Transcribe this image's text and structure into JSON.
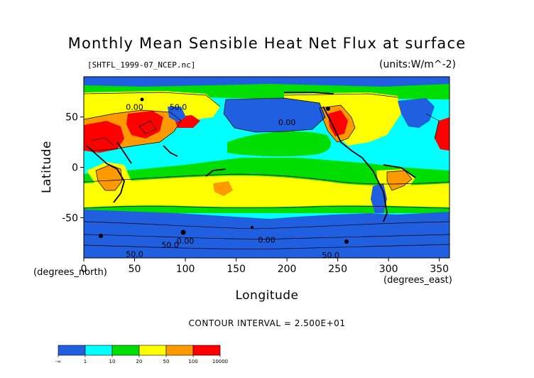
{
  "title": "Monthly Mean Sensible Heat Net Flux at surface",
  "file_label": "[SHTFL_1999-07_NCEP.nc]",
  "units_label": "(units:W/m^-2)",
  "contour_interval": "CONTOUR INTERVAL = 2.500E+01",
  "chart_data": {
    "type": "heatmap",
    "xlabel": "Longitude",
    "ylabel": "Latitude",
    "x_units": "(degrees_east)",
    "y_units": "(degrees_north)",
    "xlim": [
      0,
      360
    ],
    "ylim": [
      -90,
      90
    ],
    "x_ticks": [
      "0",
      "50",
      "100",
      "150",
      "200",
      "250",
      "300",
      "350"
    ],
    "y_ticks": [
      "50",
      "0",
      "-50"
    ],
    "legend": {
      "colors": [
        "#1f5fe0",
        "#00ffff",
        "#00dd00",
        "#ffff00",
        "#ff9900",
        "#ff0000"
      ],
      "labels": [
        "-∞",
        "1",
        "10",
        "20",
        "50",
        "100",
        "10000"
      ]
    },
    "contour_labels": [
      {
        "text": "0.00",
        "lon": 50,
        "lat": 60
      },
      {
        "text": "50.0",
        "lon": 93,
        "lat": 60
      },
      {
        "text": "0.00",
        "lon": 200,
        "lat": 45
      },
      {
        "text": "0.00",
        "lon": 180,
        "lat": -72
      },
      {
        "text": "50.0",
        "lon": 85,
        "lat": -77
      },
      {
        "text": "0.00",
        "lon": 100,
        "lat": -73
      },
      {
        "text": "50.0",
        "lon": 50,
        "lat": -86
      },
      {
        "text": "50.0",
        "lon": 243,
        "lat": -87
      }
    ]
  }
}
